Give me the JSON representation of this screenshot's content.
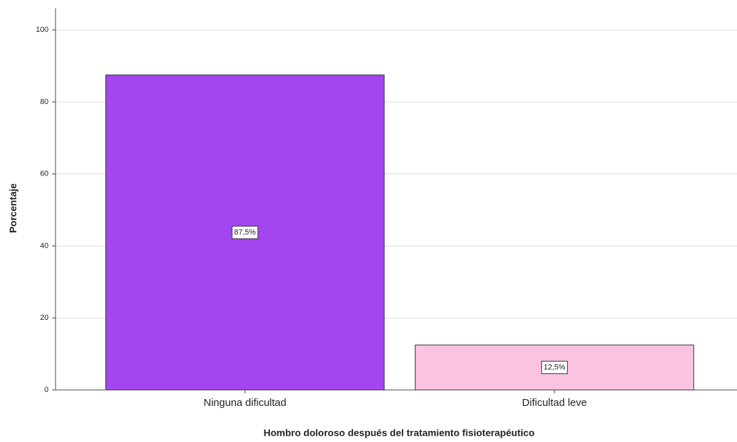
{
  "chart_data": {
    "type": "bar",
    "categories": [
      "Ninguna dificultad",
      "Dificultad leve"
    ],
    "values": [
      87.5,
      12.5
    ],
    "value_labels": [
      "87,5%",
      "12,5%"
    ],
    "colors": [
      "#a346f0",
      "#fbc3e0"
    ],
    "x_label": "Hombro doloroso después del tratamiento fisioterapéutico",
    "y_label": "Porcentaje",
    "ylim": [
      0,
      106
    ],
    "yticks": [
      0,
      20,
      40,
      60,
      80,
      100
    ],
    "grid": true
  }
}
